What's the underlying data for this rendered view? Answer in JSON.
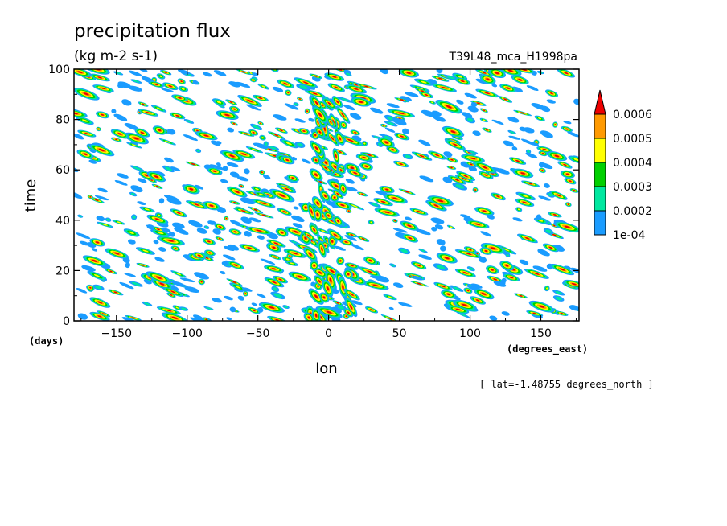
{
  "chart_data": {
    "type": "heatmap",
    "title": "precipitation flux",
    "units": "(kg m-2 s-1)",
    "experiment": "T39L48_mca_H1998pa",
    "xlabel": "lon",
    "xunits": "(degrees_east)",
    "ylabel": "time",
    "yunits": "(days)",
    "xlim": [
      -180,
      177
    ],
    "ylim": [
      0,
      100
    ],
    "xticks": [
      -150,
      -100,
      -50,
      0,
      50,
      100,
      150
    ],
    "yticks": [
      0,
      20,
      40,
      60,
      80,
      100
    ],
    "section_note": "[ lat=-1.48755 degrees_north ]",
    "levels": [
      "1e-04",
      "0.0002",
      "0.0003",
      "0.0004",
      "0.0005",
      "0.0006"
    ],
    "colors": [
      "#1a9cff",
      "#00e8a0",
      "#00d000",
      "#ffff00",
      "#ff9a00",
      "#ee0000"
    ],
    "field_note": "time-longitude Hovmoller of precipitation flux; many small eastward-moving patches, strongest values near 0 lon"
  }
}
